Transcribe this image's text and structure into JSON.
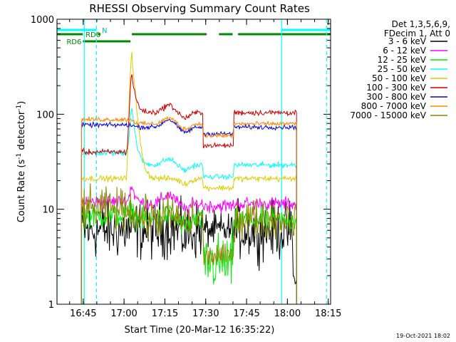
{
  "chart_data": {
    "type": "line",
    "title": "RHESSI Observing Summary Count Rates",
    "xlabel": "Start Time (20-Mar-12 16:35:22)",
    "ylabel": "Count Rate (s",
    "ylabel_sup": "-1",
    "ylabel_tail": " detector",
    "ylabel_close": ")",
    "x_range_minutes": [
      0,
      100.5
    ],
    "y_scale": "log",
    "y_range": [
      1,
      1000
    ],
    "x_ticks": [
      {
        "label": "16:45",
        "t": 9.63
      },
      {
        "label": "17:00",
        "t": 24.63
      },
      {
        "label": "17:15",
        "t": 39.63
      },
      {
        "label": "17:30",
        "t": 54.63
      },
      {
        "label": "17:45",
        "t": 69.63
      },
      {
        "label": "18:00",
        "t": 84.63
      },
      {
        "label": "18:15",
        "t": 99.63
      }
    ],
    "y_ticks": [
      {
        "label": "1",
        "v": 1
      },
      {
        "label": "10",
        "v": 10
      },
      {
        "label": "100",
        "v": 100
      },
      {
        "label": "1000",
        "v": 1000
      }
    ],
    "legend": {
      "placement": "right",
      "header": [
        "Det 1,3,5,6,9,",
        "FDecim 1, Att 0"
      ]
    },
    "series": [
      {
        "name": "3 - 6 keV",
        "color": "#000000",
        "base": 6,
        "noise": 0.5,
        "spike": 1.0,
        "shift": 1.0,
        "bump": 0.08,
        "low": 1.0,
        "low_noise": 0.3
      },
      {
        "name": "6 - 12 keV",
        "color": "#ff00ff",
        "base": 12,
        "noise": 0.12,
        "spike": 1.5,
        "shift": 0.95,
        "bump": 0.25,
        "low": 0.95,
        "low_noise": 0.12
      },
      {
        "name": "12 - 25 keV",
        "color": "#00ee00",
        "base": 8.5,
        "noise": 0.2,
        "spike": 1.2,
        "shift": 0.9,
        "bump": 0.15,
        "low": 0.35,
        "low_noise": 0.5
      },
      {
        "name": "25 - 50 keV",
        "color": "#00ffff",
        "base": 39,
        "noise": 0.05,
        "spike": 3.0,
        "shift": 0.75,
        "bump": 0.15,
        "low": 0.75,
        "low_noise": 0.04
      },
      {
        "name": "50 - 100 keV",
        "color": "#ddcc00",
        "base": 21,
        "noise": 0.05,
        "spike": 20.0,
        "shift": 1.0,
        "bump": 0.0,
        "low": 0.8,
        "low_noise": 0.05
      },
      {
        "name": "100 - 300 keV",
        "color": "#cc0000",
        "base": 40,
        "noise": 0.05,
        "spike": 6.5,
        "shift": 2.6,
        "bump": 0.2,
        "low": 0.45,
        "low_noise": 0.04
      },
      {
        "name": "300 - 800 keV",
        "color": "#0000dd",
        "base": 77,
        "noise": 0.04,
        "spike": 1.0,
        "shift": 0.95,
        "bump": 0.2,
        "low": 0.85,
        "low_noise": 0.04
      },
      {
        "name": "800 - 7000 keV",
        "color": "#ff8800",
        "base": 88,
        "noise": 0.04,
        "spike": 1.0,
        "shift": 0.9,
        "bump": 0.15,
        "low": 0.75,
        "low_noise": 0.04
      },
      {
        "name": "7000 - 15000 keV",
        "color": "#888800",
        "base": 10,
        "noise": 0.35,
        "spike": 1.0,
        "shift": 0.8,
        "bump": 0.1,
        "low": 0.4,
        "low_noise": 0.2
      }
    ],
    "data_start": 9.0,
    "data_end": 53.5,
    "gap_low_start": 53.5,
    "gap_low_end": 65.0,
    "data_resume": 65.0,
    "data_stop": 88.0,
    "flare_peak": 27.5,
    "bump_center": 41.0,
    "annotations": [
      {
        "text": "RD0",
        "t": 10.5,
        "row": 2
      },
      {
        "text": "RD6",
        "t": 3.5,
        "row": 3
      },
      {
        "text": "N",
        "t": 16.5,
        "row": 1
      }
    ],
    "flag_bars": [
      {
        "color": "#00ffff",
        "row": 1,
        "segments": [
          [
            0,
            14.5
          ],
          [
            82.5,
            100.5
          ]
        ]
      },
      {
        "color": "#008800",
        "row": 2,
        "segments": [
          [
            0,
            9.5
          ],
          [
            15,
            16
          ],
          [
            27.5,
            55
          ],
          [
            59.5,
            64.5
          ],
          [
            66.5,
            100.5
          ]
        ]
      },
      {
        "color": "#008800",
        "row": 3,
        "segments": [
          [
            9.5,
            27
          ]
        ]
      }
    ],
    "vlines": [
      {
        "t": 0.0,
        "color": "#00ffff",
        "dash": false
      },
      {
        "t": 10.0,
        "color": "#00ffff",
        "dash": false
      },
      {
        "t": 14.5,
        "color": "#00ffff",
        "dash": true
      },
      {
        "t": 82.5,
        "color": "#00ffff",
        "dash": false
      },
      {
        "t": 99.0,
        "color": "#00ffff",
        "dash": true
      }
    ]
  },
  "footer": {
    "timestamp": "19-Oct-2021 18:02"
  }
}
